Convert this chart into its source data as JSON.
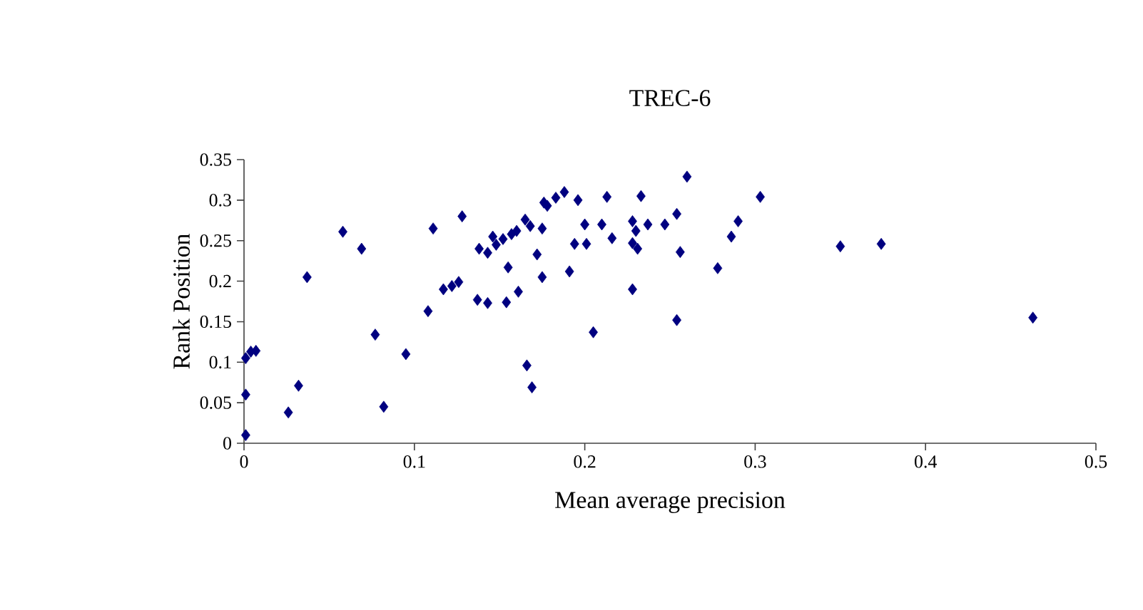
{
  "chart_data": {
    "type": "scatter",
    "title": "TREC-6",
    "xlabel": "Mean average precision",
    "ylabel": "Rank Position",
    "x": [
      0.001,
      0.001,
      0.001,
      0.004,
      0.007,
      0.026,
      0.032,
      0.037,
      0.058,
      0.069,
      0.077,
      0.082,
      0.095,
      0.108,
      0.111,
      0.128,
      0.117,
      0.122,
      0.126,
      0.137,
      0.143,
      0.154,
      0.155,
      0.161,
      0.138,
      0.143,
      0.148,
      0.152,
      0.157,
      0.16,
      0.168,
      0.146,
      0.165,
      0.175,
      0.172,
      0.175,
      0.166,
      0.169,
      0.178,
      0.183,
      0.188,
      0.176,
      0.196,
      0.191,
      0.194,
      0.201,
      0.2,
      0.21,
      0.216,
      0.213,
      0.205,
      0.228,
      0.23,
      0.228,
      0.231,
      0.237,
      0.233,
      0.228,
      0.247,
      0.254,
      0.256,
      0.26,
      0.254,
      0.278,
      0.286,
      0.29,
      0.303,
      0.35,
      0.374,
      0.463
    ],
    "values": [
      0.01,
      0.06,
      0.105,
      0.113,
      0.114,
      0.038,
      0.071,
      0.205,
      0.261,
      0.24,
      0.134,
      0.045,
      0.11,
      0.163,
      0.265,
      0.28,
      0.19,
      0.194,
      0.199,
      0.177,
      0.173,
      0.174,
      0.217,
      0.187,
      0.24,
      0.235,
      0.245,
      0.252,
      0.258,
      0.262,
      0.268,
      0.255,
      0.276,
      0.265,
      0.233,
      0.205,
      0.096,
      0.069,
      0.293,
      0.303,
      0.31,
      0.297,
      0.3,
      0.212,
      0.246,
      0.246,
      0.27,
      0.27,
      0.253,
      0.304,
      0.137,
      0.274,
      0.262,
      0.247,
      0.24,
      0.27,
      0.305,
      0.19,
      0.27,
      0.283,
      0.236,
      0.329,
      0.152,
      0.216,
      0.255,
      0.274,
      0.304,
      0.243,
      0.246,
      0.155
    ],
    "color": "#000080",
    "marker": "diamond",
    "xlim": [
      0,
      0.5
    ],
    "xticks": [
      0,
      0.1,
      0.2,
      0.3,
      0.4,
      0.5
    ],
    "ylim": [
      0,
      0.35
    ],
    "yticks": [
      0,
      0.05,
      0.1,
      0.15,
      0.2,
      0.25,
      0.3,
      0.35
    ]
  }
}
